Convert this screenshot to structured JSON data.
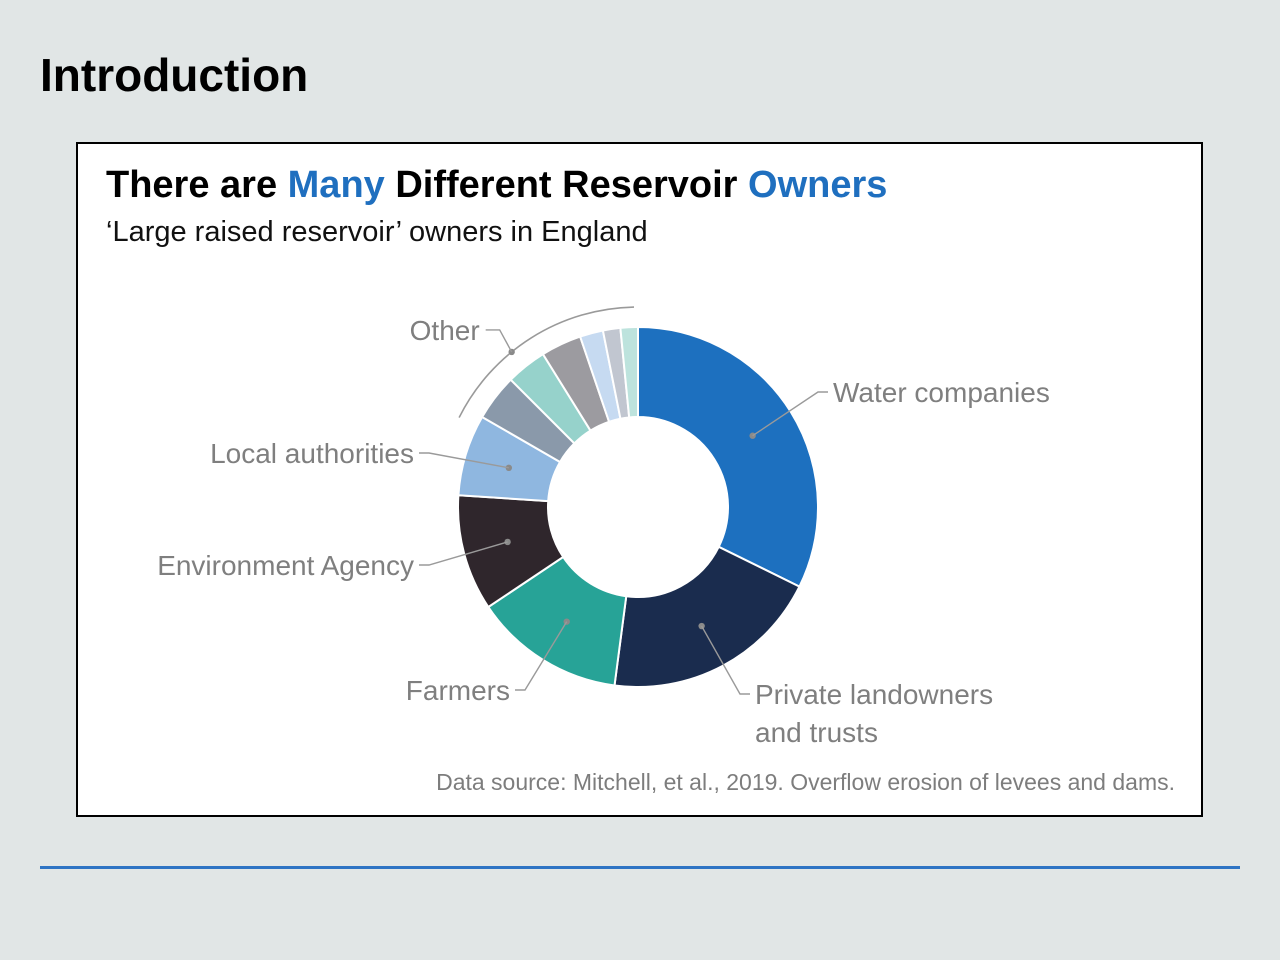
{
  "slide": {
    "title": "Introduction"
  },
  "chart_data": {
    "type": "pie",
    "donut": true,
    "title_parts": [
      {
        "text": "There are ",
        "accent": false
      },
      {
        "text": "Many",
        "accent": true
      },
      {
        "text": " Different Reservoir ",
        "accent": false
      },
      {
        "text": "Owners",
        "accent": true
      }
    ],
    "subtitle": "‘Large raised reservoir’ owners in England",
    "source": "Data source: Mitchell, et al., 2019. Overflow erosion of levees and dams.",
    "slices": [
      {
        "label": "Water companies",
        "value": 31,
        "color": "#1d70bf"
      },
      {
        "label": "Private landowners and trusts",
        "value": 19,
        "color": "#1a2c4e"
      },
      {
        "label": "Farmers",
        "value": 13,
        "color": "#27a397"
      },
      {
        "label": "Environment Agency",
        "value": 10,
        "color": "#2f262c"
      },
      {
        "label": "Local authorities",
        "value": 7,
        "color": "#8fb7e0"
      },
      {
        "label": "",
        "value": 4,
        "color": "#8a99aa"
      },
      {
        "label": "",
        "value": 3.5,
        "color": "#96d2cb"
      },
      {
        "label": "",
        "value": 3.5,
        "color": "#9c9ba0"
      },
      {
        "label": "",
        "value": 2,
        "color": "#c6daf1"
      },
      {
        "label": "",
        "value": 1.5,
        "color": "#c1c6d0"
      },
      {
        "label": "",
        "value": 1.5,
        "color": "#bde3dd"
      }
    ],
    "group_label": "Other",
    "label_color": "#7f7f7f",
    "accent_color": "#1f6fbf"
  }
}
